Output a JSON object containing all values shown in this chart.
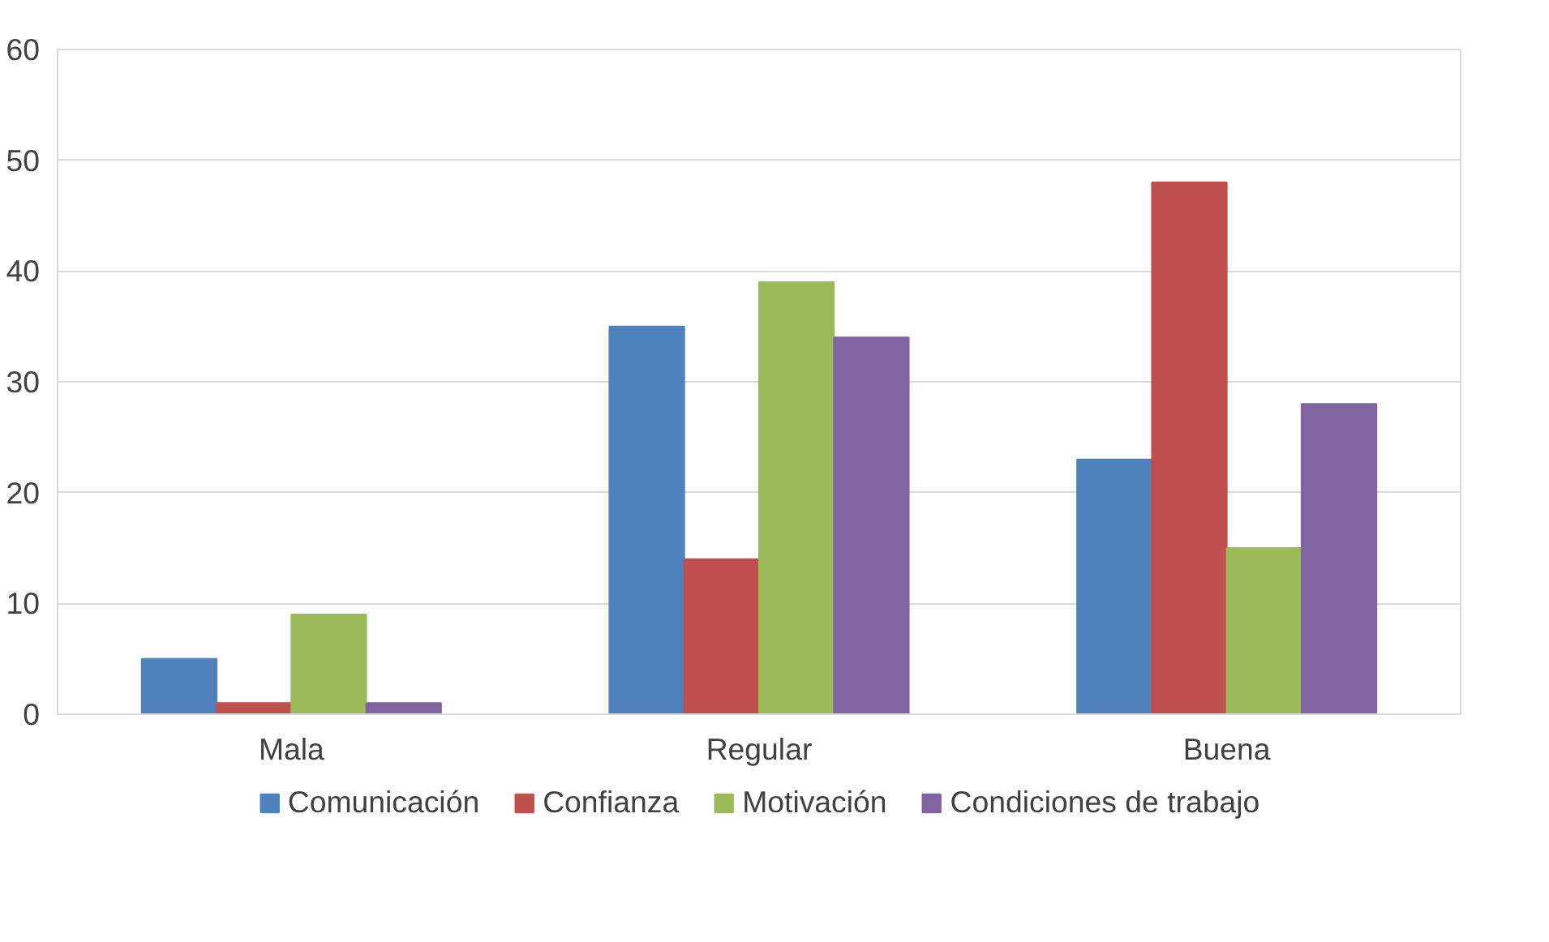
{
  "chart_data": {
    "type": "bar",
    "categories": [
      "Mala",
      "Regular",
      "Buena"
    ],
    "series": [
      {
        "name": "Comunicación",
        "color": "#4f81bd",
        "values": [
          5,
          35,
          23
        ]
      },
      {
        "name": "Confianza",
        "color": "#c0504d",
        "values": [
          1,
          14,
          48
        ]
      },
      {
        "name": "Motivación",
        "color": "#9bbb59",
        "values": [
          9,
          39,
          15
        ]
      },
      {
        "name": "Condiciones de trabajo",
        "color": "#8064a2",
        "values": [
          1,
          34,
          28
        ]
      }
    ],
    "ylim": [
      0,
      60
    ],
    "yticks": [
      0,
      10,
      20,
      30,
      40,
      50,
      60
    ],
    "grid": "y",
    "legend": "bottom"
  }
}
